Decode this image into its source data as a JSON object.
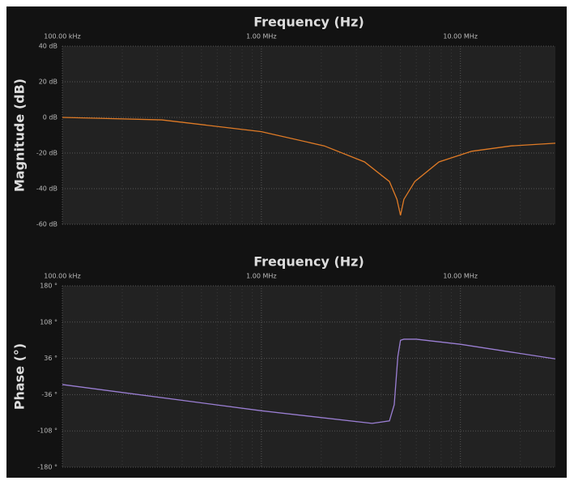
{
  "chart_data": [
    {
      "type": "line",
      "title": "Frequency (Hz)",
      "y_label": "Magnitude (dB)",
      "log_x": true,
      "grid": true,
      "color": "#e07b26",
      "xlim": [
        100000,
        30000000
      ],
      "xticks": [
        {
          "value": 100000,
          "label": "100.00 kHz"
        },
        {
          "value": 1000000,
          "label": "1.00 MHz"
        },
        {
          "value": 10000000,
          "label": "10.00 MHz"
        }
      ],
      "ylim": [
        -60,
        40
      ],
      "yticks": [
        {
          "value": -60,
          "label": "-60 dB"
        },
        {
          "value": -40,
          "label": "-40 dB"
        },
        {
          "value": -20,
          "label": "-20 dB"
        },
        {
          "value": 0,
          "label": "0 dB"
        },
        {
          "value": 20,
          "label": "20 dB"
        },
        {
          "value": 40,
          "label": "40 dB"
        }
      ],
      "x": [
        100000,
        316000,
        1000000,
        2070000,
        3300000,
        4400000,
        4800000,
        5000000,
        5200000,
        5900000,
        7800000,
        11400000,
        18000000,
        30000000
      ],
      "values": [
        0,
        -1.4,
        -8,
        -16,
        -25,
        -36,
        -46,
        -55,
        -46,
        -36,
        -25,
        -19,
        -16,
        -14.5
      ]
    },
    {
      "type": "line",
      "title": "Frequency (Hz)",
      "y_label": "Phase (°)",
      "log_x": true,
      "grid": true,
      "color": "#9b7fd4",
      "xlim": [
        100000,
        30000000
      ],
      "xticks": [
        {
          "value": 100000,
          "label": "100.00 kHz"
        },
        {
          "value": 1000000,
          "label": "1.00 MHz"
        },
        {
          "value": 10000000,
          "label": "10.00 MHz"
        }
      ],
      "ylim": [
        -180,
        180
      ],
      "yticks": [
        {
          "value": -180,
          "label": "-180 °"
        },
        {
          "value": -108,
          "label": "-108 °"
        },
        {
          "value": -36,
          "label": "-36 °"
        },
        {
          "value": 36,
          "label": "36 °"
        },
        {
          "value": 108,
          "label": "108 °"
        },
        {
          "value": 180,
          "label": "180 °"
        }
      ],
      "x": [
        100000,
        1000000,
        3600000,
        4400000,
        4650000,
        4850000,
        5000000,
        5200000,
        6000000,
        10000000,
        30000000
      ],
      "values": [
        -16,
        -68,
        -93,
        -88,
        -56,
        40,
        72,
        74,
        74,
        64,
        35
      ]
    }
  ]
}
